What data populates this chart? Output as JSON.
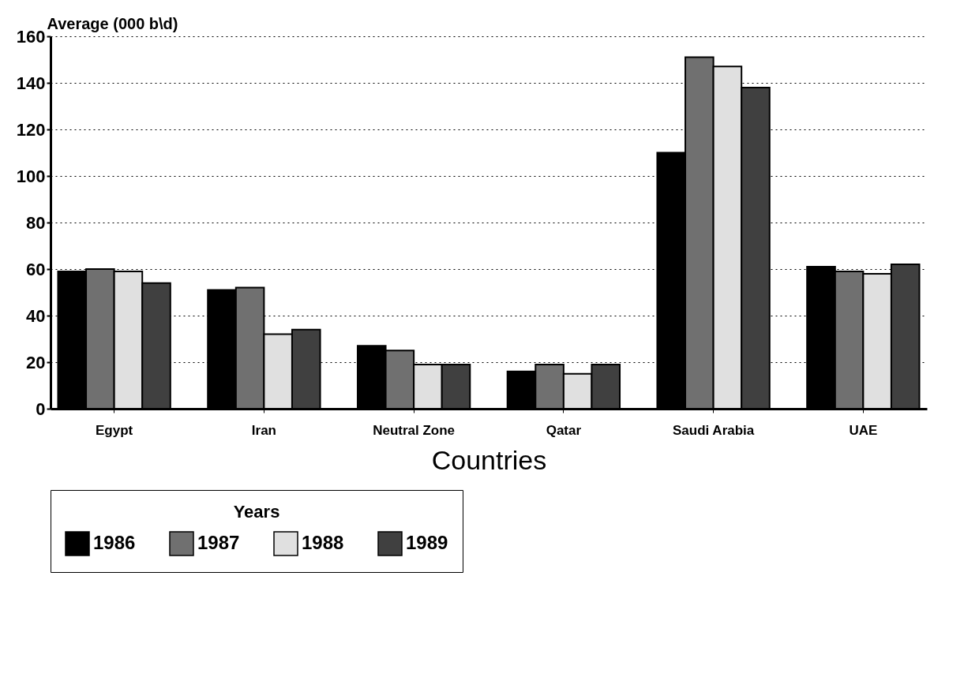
{
  "chart_data": {
    "type": "bar",
    "xlabel": "Countries",
    "ylabel": "Average (000 b\\d)",
    "legend_title": "Years",
    "categories": [
      "Egypt",
      "Iran",
      "Neutral Zone",
      "Qatar",
      "Saudi Arabia",
      "UAE"
    ],
    "series": [
      {
        "name": "1986",
        "color": "#000000",
        "values": [
          59,
          51,
          27,
          16,
          110,
          61
        ]
      },
      {
        "name": "1987",
        "color": "#707070",
        "values": [
          60,
          52,
          25,
          19,
          151,
          59
        ]
      },
      {
        "name": "1988",
        "color": "#e0e0e0",
        "values": [
          59,
          32,
          19,
          15,
          147,
          58
        ]
      },
      {
        "name": "1989",
        "color": "#404040",
        "values": [
          54,
          34,
          19,
          19,
          138,
          62
        ]
      }
    ],
    "ylim": [
      0,
      160
    ],
    "yticks": [
      0,
      20,
      40,
      60,
      80,
      100,
      120,
      140,
      160
    ],
    "grid": "y",
    "legend": "bottom"
  }
}
